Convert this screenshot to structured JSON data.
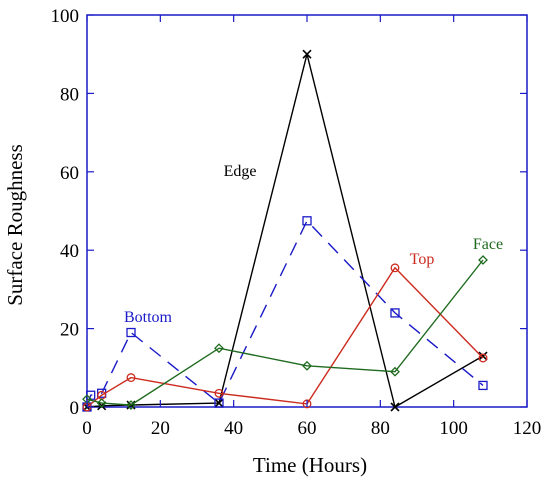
{
  "chart_data": {
    "type": "line",
    "xlabel": "Time (Hours)",
    "ylabel": "Surface Roughness",
    "xlim": [
      0,
      120
    ],
    "ylim": [
      0,
      100
    ],
    "xticks": [
      "0",
      "20",
      "40",
      "60",
      "80",
      "100",
      "120"
    ],
    "yticks": [
      "0",
      "20",
      "40",
      "60",
      "80",
      "100"
    ],
    "xtick_values": [
      0,
      20,
      40,
      60,
      80,
      100,
      120
    ],
    "ytick_values": [
      0,
      20,
      40,
      60,
      80,
      100
    ],
    "grid": false,
    "series": [
      {
        "name": "Edge",
        "color": "#000000",
        "marker": "x",
        "line": "solid",
        "x": [
          0,
          4,
          12,
          36,
          60,
          84,
          108
        ],
        "y": [
          0,
          0.3,
          0.5,
          1,
          90,
          0,
          13
        ]
      },
      {
        "name": "Bottom",
        "color": "#1a1ac8",
        "marker": "square",
        "line": "dashed",
        "x": [
          0,
          1,
          4,
          12,
          36,
          60,
          84,
          108
        ],
        "y": [
          0,
          3,
          3.5,
          19,
          1,
          47.5,
          24,
          5.5
        ]
      },
      {
        "name": "Top",
        "color": "#cc2b1f",
        "marker": "circle",
        "line": "solid",
        "x": [
          0,
          4,
          12,
          36,
          60,
          84,
          108
        ],
        "y": [
          0,
          3,
          7.5,
          3.5,
          0.8,
          35.5,
          12.5
        ]
      },
      {
        "name": "Face",
        "color": "#1f6b1f",
        "marker": "diamond",
        "line": "solid",
        "x": [
          0,
          4,
          12,
          36,
          60,
          84,
          108
        ],
        "y": [
          2,
          1,
          0.5,
          15,
          10.5,
          9,
          37.5
        ]
      }
    ],
    "annotations": [
      {
        "text": "Edge",
        "series": "Edge"
      },
      {
        "text": "Bottom",
        "series": "Bottom"
      },
      {
        "text": "Top",
        "series": "Top"
      },
      {
        "text": "Face",
        "series": "Face"
      }
    ]
  }
}
